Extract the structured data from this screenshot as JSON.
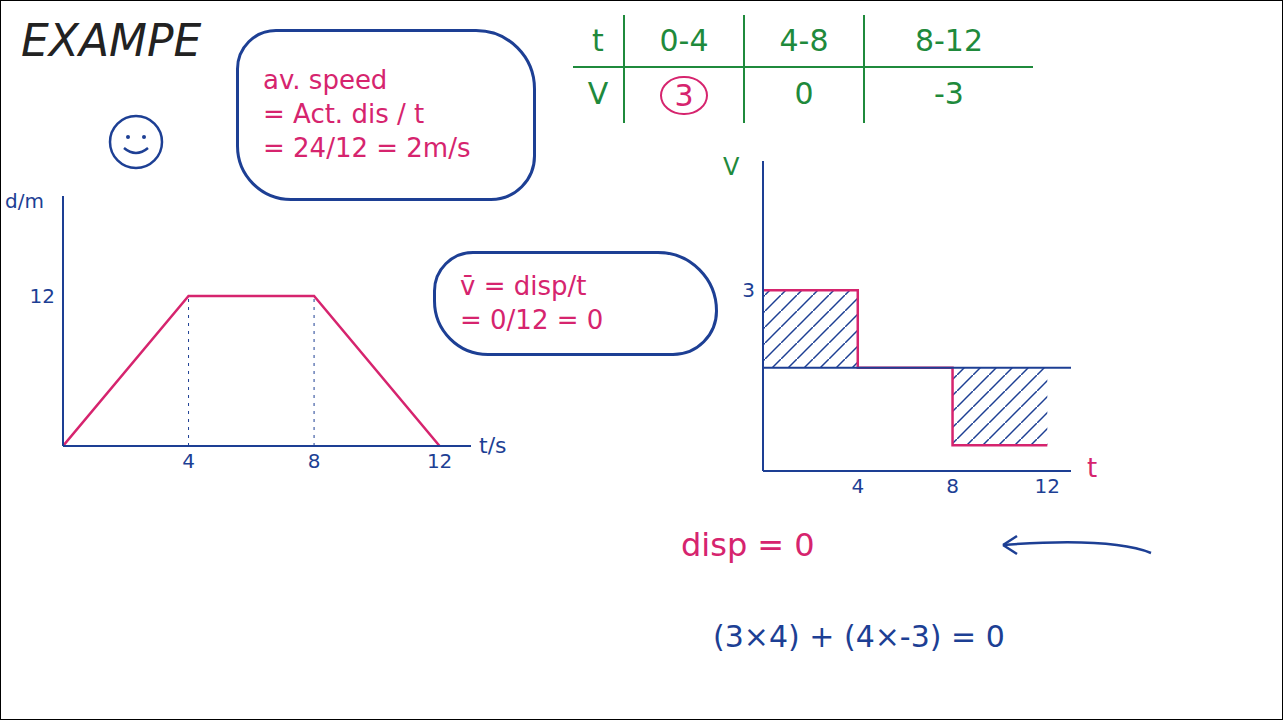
{
  "chart_data": [
    {
      "type": "line",
      "title": "EXAMPE",
      "x_label": "t/s",
      "y_label": "d/m",
      "x": [
        0,
        4,
        8,
        12
      ],
      "values": [
        0,
        12,
        12,
        0
      ],
      "color": "#d6246e",
      "xlim": [
        0,
        13
      ],
      "ylim": [
        0,
        20
      ],
      "xticks": [
        4,
        8,
        12
      ],
      "yticks": [
        12
      ],
      "annotations": [
        [
          "av. speed",
          "= Act. dis / t",
          "= 24/12 = 2m/s"
        ],
        [
          "v̄ = disp/t",
          "= 0/12 = 0"
        ]
      ]
    },
    {
      "type": "step",
      "x_label": "t",
      "y_label": "V",
      "categories": [
        "0-4",
        "4-8",
        "8-12"
      ],
      "bins": [
        0,
        4,
        8,
        12
      ],
      "values": [
        3,
        0,
        -3
      ],
      "color": "#d6246e",
      "xlim": [
        0,
        13
      ],
      "ylim": [
        -4,
        8
      ],
      "xticks": [
        4,
        8,
        12
      ],
      "yticks": [
        3
      ],
      "annotations": [
        "disp = 0",
        "(3×4) + (4×-3) = 0"
      ]
    }
  ]
}
